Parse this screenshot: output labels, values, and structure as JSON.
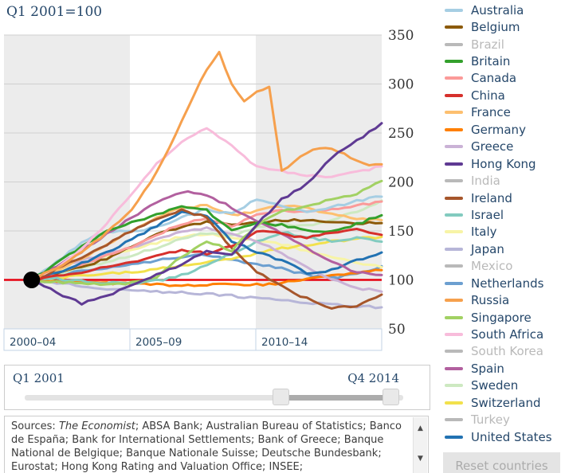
{
  "title": "Q1 2001=100",
  "chart_data": {
    "type": "line",
    "title": "Q1 2001=100",
    "x_axis": {
      "domain": [
        2000,
        2015
      ],
      "bands": [
        {
          "label": "2000–04",
          "start": 2000,
          "end": 2005,
          "shaded": true
        },
        {
          "label": "2005–09",
          "start": 2005,
          "end": 2010,
          "shaded": false
        },
        {
          "label": "2010–14",
          "start": 2010,
          "end": 2015,
          "shaded": true
        }
      ]
    },
    "y_axis": {
      "domain": [
        50,
        350
      ],
      "ticks": [
        50,
        100,
        150,
        200,
        250,
        300,
        350
      ],
      "gridlines": [
        150,
        200,
        250,
        300,
        350
      ]
    },
    "baseline": {
      "value": 100,
      "color": "#E6000F"
    },
    "start_marker": {
      "x": 2001.1,
      "value": 100,
      "color": "#000000"
    },
    "x_start": 2001.1,
    "x_end": 2015,
    "series": [
      {
        "name": "Japan",
        "color": "#B7B6D8",
        "values": [
          100,
          97,
          94,
          91,
          89,
          88,
          87,
          86,
          84,
          81,
          79,
          77,
          75,
          73,
          72
        ]
      },
      {
        "name": "Netherlands",
        "color": "#6C9FD0",
        "values": [
          100,
          105,
          109,
          112,
          116,
          120,
          124,
          126,
          121,
          116,
          112,
          105,
          102,
          106,
          114
        ]
      },
      {
        "name": "Germany",
        "color": "#FF7F00",
        "values": [
          100,
          99,
          98,
          97,
          96,
          95,
          94,
          95,
          96,
          95,
          97,
          101,
          104,
          107,
          110
        ]
      },
      {
        "name": "Italy",
        "color": "#F7F4A6",
        "values": [
          100,
          108,
          116,
          124,
          131,
          138,
          144,
          147,
          143,
          140,
          136,
          130,
          123,
          117,
          113
        ]
      },
      {
        "name": "Sweden",
        "color": "#CDE9C1",
        "values": [
          100,
          106,
          112,
          118,
          125,
          133,
          142,
          148,
          145,
          154,
          157,
          155,
          161,
          170,
          181
        ]
      },
      {
        "name": "Switzerland",
        "color": "#F2E14C",
        "values": [
          100,
          102,
          104,
          106,
          108,
          111,
          114,
          118,
          122,
          127,
          132,
          136,
          139,
          142,
          144
        ]
      },
      {
        "name": "Israel",
        "color": "#82CBBF",
        "values": [
          100,
          101,
          99,
          97,
          96,
          99,
          105,
          115,
          127,
          139,
          149,
          143,
          140,
          143,
          139
        ]
      },
      {
        "name": "Greece",
        "color": "#CAB2D6",
        "values": [
          100,
          111,
          121,
          126,
          133,
          142,
          149,
          153,
          148,
          140,
          127,
          113,
          100,
          92,
          88
        ]
      },
      {
        "name": "Belgium",
        "color": "#8C5A0A",
        "values": [
          100,
          106,
          113,
          122,
          134,
          146,
          154,
          159,
          157,
          158,
          161,
          161,
          159,
          158,
          158
        ]
      },
      {
        "name": "Canada",
        "color": "#FB9A99",
        "values": [
          100,
          107,
          116,
          125,
          134,
          146,
          157,
          163,
          155,
          167,
          171,
          169,
          172,
          176,
          180
        ]
      },
      {
        "name": "France",
        "color": "#FDBF6F",
        "values": [
          100,
          110,
          122,
          136,
          151,
          164,
          173,
          176,
          166,
          170,
          176,
          173,
          168,
          163,
          161
        ]
      },
      {
        "name": "Australia",
        "color": "#A6CEE3",
        "values": [
          100,
          118,
          138,
          150,
          149,
          154,
          164,
          172,
          167,
          183,
          176,
          170,
          174,
          181,
          185
        ]
      },
      {
        "name": "United States",
        "color": "#2272B2",
        "values": [
          100,
          107,
          117,
          128,
          141,
          155,
          170,
          165,
          140,
          128,
          120,
          107,
          110,
          120,
          128
        ]
      },
      {
        "name": "Spain",
        "color": "#B2609F",
        "values": [
          100,
          114,
          129,
          147,
          164,
          179,
          190,
          187,
          174,
          160,
          148,
          133,
          118,
          108,
          105
        ]
      },
      {
        "name": "Ireland",
        "color": "#A6562B",
        "values": [
          100,
          111,
          123,
          136,
          150,
          162,
          171,
          164,
          132,
          108,
          93,
          81,
          71,
          74,
          85
        ]
      },
      {
        "name": "Britain",
        "color": "#33A02C",
        "values": [
          100,
          117,
          134,
          150,
          159,
          167,
          175,
          171,
          150,
          159,
          156,
          151,
          149,
          157,
          166
        ]
      },
      {
        "name": "China",
        "color": "#D6302C",
        "values": [
          100,
          104,
          108,
          113,
          118,
          124,
          131,
          127,
          134,
          150,
          147,
          143,
          149,
          152,
          146
        ]
      },
      {
        "name": "Singapore",
        "color": "#A2D163",
        "values": [
          100,
          98,
          96,
          95,
          97,
          103,
          124,
          140,
          130,
          156,
          170,
          175,
          182,
          188,
          201
        ]
      },
      {
        "name": "South Africa",
        "color": "#F8BCDB",
        "values": [
          100,
          112,
          132,
          158,
          188,
          218,
          242,
          255,
          237,
          215,
          211,
          206,
          206,
          210,
          216
        ]
      },
      {
        "name": "Russia",
        "color": "#F6A04D",
        "values": [
          100,
          106,
          112,
          120,
          128,
          138,
          148,
          160,
          172,
          190,
          210,
          235,
          262,
          290,
          315,
          333,
          300,
          283,
          293,
          297,
          212,
          220,
          230,
          235,
          233,
          228,
          222,
          217,
          218
        ]
      },
      {
        "name": "Hong Kong",
        "color": "#5F3A93",
        "values": [
          100,
          87,
          76,
          83,
          95,
          105,
          116,
          130,
          125,
          157,
          182,
          198,
          225,
          242,
          260
        ]
      }
    ]
  },
  "legend": {
    "reset_label": "Reset countries",
    "items": [
      {
        "label": "Australia",
        "color": "#A6CEE3",
        "active": true
      },
      {
        "label": "Belgium",
        "color": "#8C5A0A",
        "active": true
      },
      {
        "label": "Brazil",
        "color": "#B9B9B9",
        "active": false
      },
      {
        "label": "Britain",
        "color": "#33A02C",
        "active": true
      },
      {
        "label": "Canada",
        "color": "#FB9A99",
        "active": true
      },
      {
        "label": "China",
        "color": "#D6302C",
        "active": true
      },
      {
        "label": "France",
        "color": "#FDBF6F",
        "active": true
      },
      {
        "label": "Germany",
        "color": "#FF7F00",
        "active": true
      },
      {
        "label": "Greece",
        "color": "#CAB2D6",
        "active": true
      },
      {
        "label": "Hong Kong",
        "color": "#5F3A93",
        "active": true
      },
      {
        "label": "India",
        "color": "#B9B9B9",
        "active": false
      },
      {
        "label": "Ireland",
        "color": "#A6562B",
        "active": true
      },
      {
        "label": "Israel",
        "color": "#82CBBF",
        "active": true
      },
      {
        "label": "Italy",
        "color": "#F7F4A6",
        "active": true
      },
      {
        "label": "Japan",
        "color": "#B7B6D8",
        "active": true
      },
      {
        "label": "Mexico",
        "color": "#B9B9B9",
        "active": false
      },
      {
        "label": "Netherlands",
        "color": "#6C9FD0",
        "active": true
      },
      {
        "label": "Russia",
        "color": "#F6A04D",
        "active": true
      },
      {
        "label": "Singapore",
        "color": "#A2D163",
        "active": true
      },
      {
        "label": "South Africa",
        "color": "#F8BCDB",
        "active": true
      },
      {
        "label": "South Korea",
        "color": "#B9B9B9",
        "active": false
      },
      {
        "label": "Spain",
        "color": "#B2609F",
        "active": true
      },
      {
        "label": "Sweden",
        "color": "#CDE9C1",
        "active": true
      },
      {
        "label": "Switzerland",
        "color": "#F2E14C",
        "active": true
      },
      {
        "label": "Turkey",
        "color": "#B9B9B9",
        "active": false
      },
      {
        "label": "United States",
        "color": "#2272B2",
        "active": true
      }
    ]
  },
  "slider": {
    "start_label": "Q1 2001",
    "end_label": "Q4 2014"
  },
  "sources": {
    "prefix": "Sources: ",
    "economist": "The Economist",
    "rest": "; ABSA Bank; Australian Bureau of Statistics; Banco de España; Bank for International Settlements; Bank of Greece; Banque National de Belgique; Banque Nationale Suisse; Deutsche Bundesbank; Eurostat; Hong Kong Rating and Valuation Office; INSEE;"
  }
}
